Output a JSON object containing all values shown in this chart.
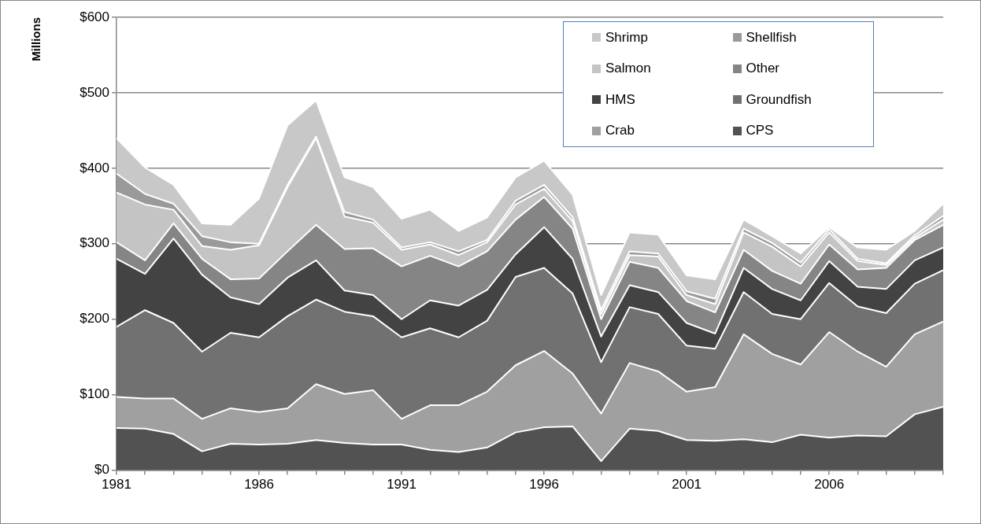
{
  "chart_data": {
    "type": "area",
    "stacked": true,
    "ylabel": "Millions",
    "x": [
      1981,
      1982,
      1983,
      1984,
      1985,
      1986,
      1987,
      1988,
      1989,
      1990,
      1991,
      1992,
      1993,
      1994,
      1995,
      1996,
      1997,
      1998,
      1999,
      2000,
      2001,
      2002,
      2003,
      2004,
      2005,
      2006,
      2007,
      2008,
      2009,
      2010
    ],
    "xlim": [
      1981,
      2010
    ],
    "xticks": [
      1981,
      {
        "value": 1982,
        "label": null
      },
      {
        "value": 1983,
        "label": null
      },
      {
        "value": 1984,
        "label": null
      },
      {
        "value": 1985,
        "label": null
      },
      1986,
      {
        "value": 1987,
        "label": null
      },
      {
        "value": 1988,
        "label": null
      },
      {
        "value": 1989,
        "label": null
      },
      {
        "value": 1990,
        "label": null
      },
      1991,
      {
        "value": 1992,
        "label": null
      },
      {
        "value": 1993,
        "label": null
      },
      {
        "value": 1994,
        "label": null
      },
      {
        "value": 1995,
        "label": null
      },
      1996,
      {
        "value": 1997,
        "label": null
      },
      {
        "value": 1998,
        "label": null
      },
      {
        "value": 1999,
        "label": null
      },
      {
        "value": 2000,
        "label": null
      },
      2001,
      {
        "value": 2002,
        "label": null
      },
      {
        "value": 2003,
        "label": null
      },
      {
        "value": 2004,
        "label": null
      },
      {
        "value": 2005,
        "label": null
      },
      2006,
      {
        "value": 2007,
        "label": null
      },
      {
        "value": 2008,
        "label": null
      },
      {
        "value": 2009,
        "label": null
      },
      {
        "value": 2010,
        "label": null
      }
    ],
    "ylim": [
      0,
      600
    ],
    "yticks": [
      {
        "value": 0,
        "label": "$0"
      },
      {
        "value": 100,
        "label": "$100"
      },
      {
        "value": 200,
        "label": "$200"
      },
      {
        "value": 300,
        "label": "$300"
      },
      {
        "value": 400,
        "label": "$400"
      },
      {
        "value": 500,
        "label": "$500"
      },
      {
        "value": 600,
        "label": "$600"
      }
    ],
    "grid": "y",
    "legend": "top right",
    "series": [
      {
        "name": "CPS",
        "color": "#525252",
        "values": [
          56,
          55,
          48,
          25,
          35,
          34,
          35,
          40,
          36,
          34,
          34,
          27,
          24,
          30,
          50,
          57,
          58,
          12,
          55,
          52,
          40,
          39,
          41,
          37,
          47,
          43,
          46,
          45,
          74,
          84
        ]
      },
      {
        "name": "Crab",
        "color": "#a0a0a0",
        "values": [
          41,
          40,
          47,
          43,
          47,
          43,
          47,
          74,
          65,
          72,
          34,
          59,
          62,
          74,
          89,
          101,
          70,
          63,
          87,
          79,
          64,
          71,
          139,
          117,
          93,
          140,
          111,
          92,
          106,
          113
        ]
      },
      {
        "name": "Groundfish",
        "color": "#717171",
        "values": [
          93,
          117,
          100,
          89,
          100,
          99,
          122,
          112,
          109,
          98,
          108,
          102,
          90,
          94,
          117,
          110,
          106,
          68,
          74,
          76,
          61,
          51,
          56,
          53,
          60,
          65,
          60,
          71,
          67,
          68
        ]
      },
      {
        "name": "HMS",
        "color": "#434343",
        "values": [
          90,
          48,
          112,
          102,
          47,
          44,
          51,
          52,
          28,
          28,
          24,
          37,
          42,
          41,
          30,
          54,
          46,
          34,
          29,
          29,
          30,
          20,
          32,
          33,
          25,
          29,
          26,
          32,
          31,
          30
        ]
      },
      {
        "name": "Other",
        "color": "#858585",
        "values": [
          22,
          18,
          20,
          21,
          24,
          34,
          35,
          47,
          55,
          62,
          70,
          59,
          52,
          51,
          46,
          40,
          40,
          23,
          31,
          32,
          29,
          28,
          24,
          24,
          22,
          22,
          23,
          28,
          27,
          30
        ]
      },
      {
        "name": "Salmon",
        "color": "#c4c4c4",
        "values": [
          66,
          74,
          18,
          17,
          39,
          44,
          85,
          115,
          43,
          34,
          22,
          15,
          15,
          12,
          20,
          11,
          10,
          7,
          9,
          15,
          8,
          11,
          23,
          32,
          23,
          16,
          11,
          4,
          3,
          7
        ]
      },
      {
        "name": "Shellfish",
        "color": "#9a9a9a",
        "values": [
          25,
          14,
          8,
          13,
          10,
          2,
          3,
          2,
          6,
          4,
          3,
          3,
          5,
          3,
          5,
          5,
          5,
          5,
          5,
          4,
          5,
          7,
          5,
          5,
          5,
          4,
          3,
          2,
          3,
          5
        ]
      },
      {
        "name": "Shrimp",
        "color": "#c8c8c8",
        "values": [
          47,
          35,
          25,
          17,
          23,
          60,
          79,
          48,
          46,
          43,
          38,
          43,
          27,
          30,
          31,
          32,
          30,
          20,
          25,
          25,
          21,
          26,
          12,
          9,
          12,
          3,
          15,
          18,
          6,
          16
        ]
      }
    ]
  }
}
